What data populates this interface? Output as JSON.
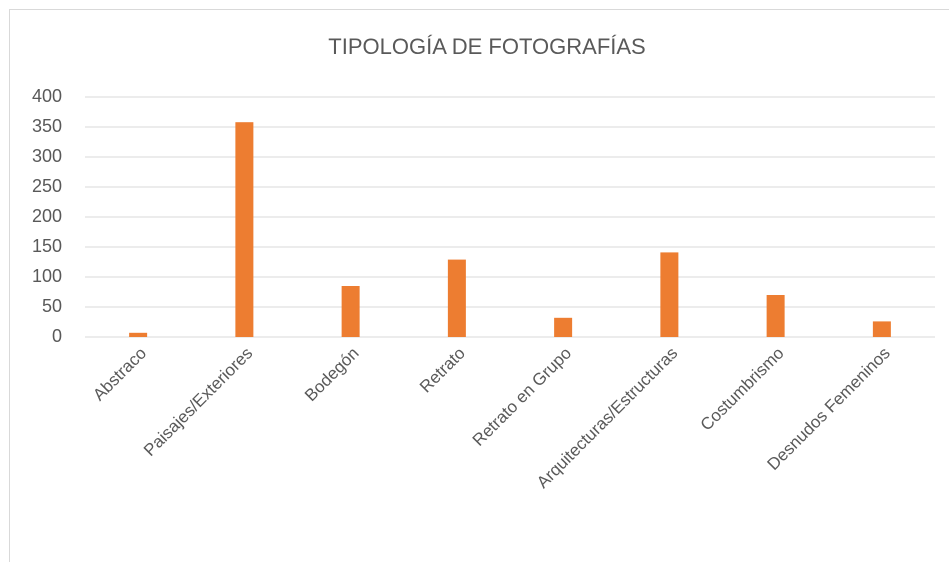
{
  "chart_data": {
    "type": "bar",
    "title": "TIPOLOGÍA DE FOTOGRAFÍAS",
    "categories": [
      "Abstraco",
      "Paisajes/Exteriores",
      "Bodegón",
      "Retrato",
      "Retrato en Grupo",
      "Arquitecturas/Estructuras",
      "Costumbrismo",
      "Desnudos Femeninos"
    ],
    "values": [
      7,
      358,
      85,
      129,
      32,
      141,
      70,
      26
    ],
    "color": "#ed7d31",
    "ylim": [
      0,
      400
    ],
    "yticks": [
      0,
      50,
      100,
      150,
      200,
      250,
      300,
      350,
      400
    ],
    "grid": true
  }
}
